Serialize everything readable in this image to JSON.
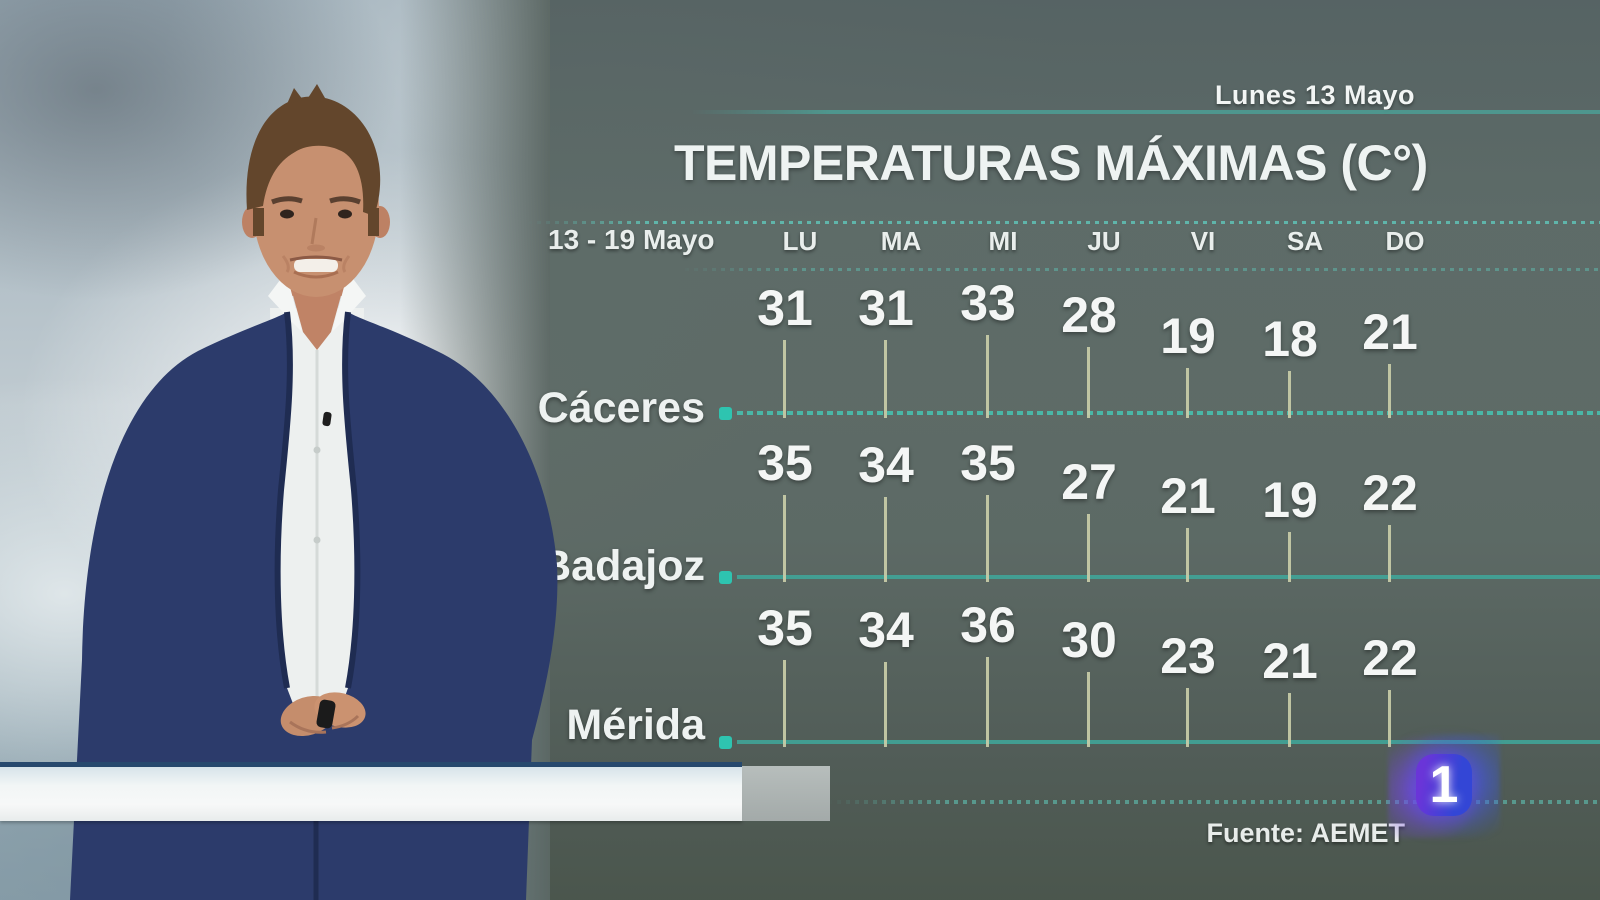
{
  "header": {
    "broadcast_date": "Lunes 13 Mayo",
    "title": "TEMPERATURAS MÁXIMAS (C°)",
    "source": "Fuente: AEMET",
    "channel_logo_text": "1"
  },
  "week": {
    "range_label": "13 - 19 Mayo"
  },
  "chart_data": {
    "type": "bar",
    "title": "TEMPERATURAS MÁXIMAS (C°)",
    "period": "13 - 19 Mayo",
    "categories": [
      "LU",
      "MA",
      "MI",
      "JU",
      "VI",
      "SA",
      "DO"
    ],
    "series": [
      {
        "name": "Cáceres",
        "values": [
          31,
          31,
          33,
          28,
          19,
          18,
          21
        ]
      },
      {
        "name": "Badajoz",
        "values": [
          35,
          34,
          35,
          27,
          21,
          19,
          22
        ]
      },
      {
        "name": "Mérida",
        "values": [
          35,
          34,
          36,
          30,
          23,
          21,
          22
        ]
      }
    ],
    "unit": "C°",
    "source": "Fuente: AEMET",
    "legend_position": "city labels left of each baseline",
    "grid": false,
    "layout": "three horizontal teal baselines (one per city); vertical khaki stems per weekday, stem height proportional to temperature, value printed above each stem"
  },
  "colors": {
    "accent_teal": "#3fa89b",
    "stem_khaki": "#c9cda8",
    "bar_border_navy": "#27496e",
    "logo_blue": "#3346d6",
    "logo_purple": "#6a35d8",
    "panel_grey_green": "#596662"
  }
}
